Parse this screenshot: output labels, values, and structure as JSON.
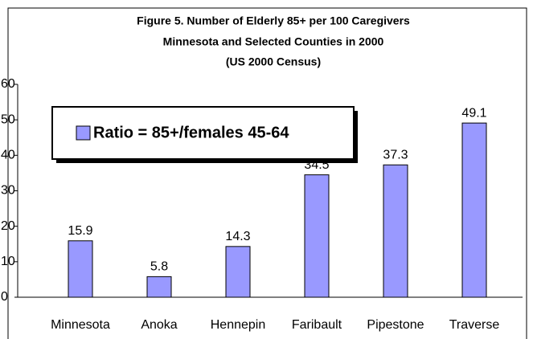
{
  "chart_data": {
    "type": "bar",
    "title": [
      "Figure 5. Number of Elderly 85+ per 100 Caregivers",
      "Minnesota and Selected Counties in 2000",
      "(US 2000 Census)"
    ],
    "categories": [
      "Minnesota",
      "Anoka",
      "Hennepin",
      "Faribault",
      "Pipestone",
      "Traverse"
    ],
    "series": [
      {
        "name": "Ratio = 85+/females 45-64",
        "color": "#9999ff",
        "values": [
          15.9,
          5.8,
          14.3,
          34.5,
          37.3,
          49.1
        ]
      }
    ],
    "ylim": [
      0,
      60
    ],
    "yticks": [
      0,
      10,
      20,
      30,
      40,
      50,
      60
    ],
    "legend": "top-left"
  }
}
